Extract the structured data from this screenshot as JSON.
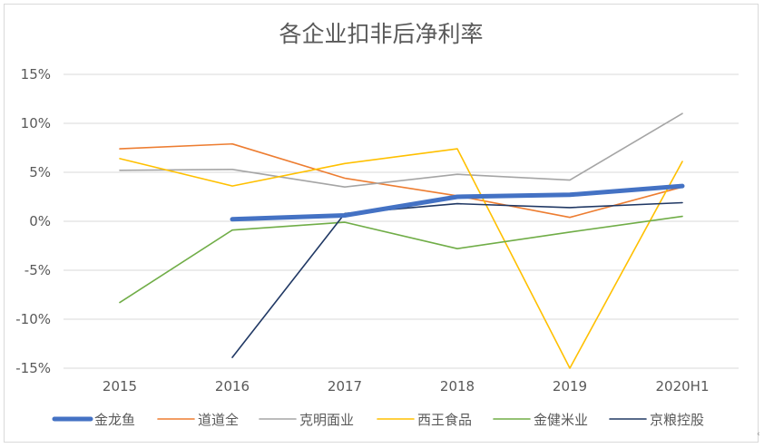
{
  "chart_data": {
    "type": "line",
    "title": "各企业扣非后净利率",
    "xlabel": "",
    "ylabel": "",
    "categories": [
      "2015",
      "2016",
      "2017",
      "2018",
      "2019",
      "2020H1"
    ],
    "ylim": [
      -15,
      15
    ],
    "yticks": [
      15,
      10,
      5,
      0,
      -5,
      -10,
      -15
    ],
    "ytick_labels": [
      "15%",
      "10%",
      "5%",
      "0%",
      "-5%",
      "-10%",
      "-15%"
    ],
    "grid": true,
    "legend_position": "bottom",
    "series": [
      {
        "name": "金龙鱼",
        "color": "#4472C4",
        "values": [
          null,
          0.2,
          0.6,
          2.5,
          2.7,
          3.6
        ]
      },
      {
        "name": "道道全",
        "color": "#ED7D31",
        "values": [
          7.4,
          7.9,
          4.4,
          2.6,
          0.4,
          3.5
        ]
      },
      {
        "name": "克明面业",
        "color": "#A5A5A5",
        "values": [
          5.2,
          5.3,
          3.5,
          4.8,
          4.2,
          11.0
        ]
      },
      {
        "name": "西王食品",
        "color": "#FFC000",
        "values": [
          6.4,
          3.6,
          5.9,
          7.4,
          -15.0,
          6.1
        ]
      },
      {
        "name": "金健米业",
        "color": "#70AD47",
        "values": [
          -8.3,
          -0.9,
          -0.1,
          -2.8,
          -1.1,
          0.5
        ]
      },
      {
        "name": "京粮控股",
        "color": "#203864",
        "values": [
          null,
          -13.9,
          0.8,
          1.8,
          1.4,
          1.9
        ]
      }
    ]
  },
  "corner_mark": "‹"
}
